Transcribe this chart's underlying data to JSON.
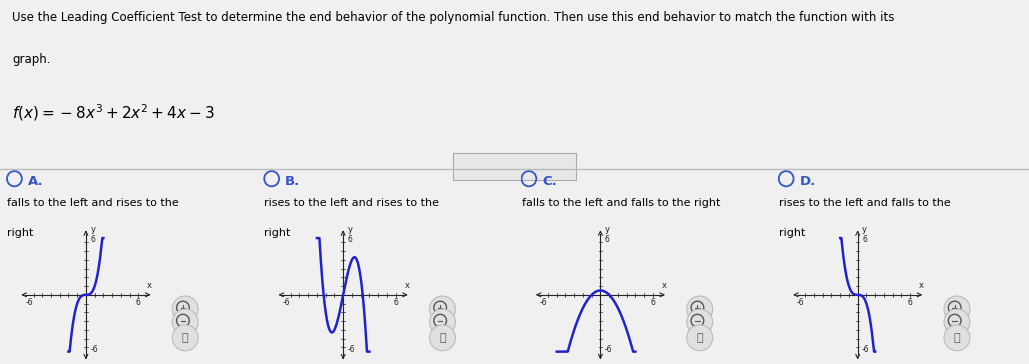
{
  "title_line1": "Use the Leading Coefficient Test to determine the end behavior of the polynomial function. Then use this end behavior to match the function with its",
  "title_line2": "graph.",
  "background_color": "#f0f0f0",
  "text_color": "#000000",
  "option_label_color": "#3355cc",
  "options": [
    "A.",
    "B.",
    "C.",
    "D."
  ],
  "descriptions": [
    [
      "falls to the left and rises to the",
      "right"
    ],
    [
      "rises to the left and rises to the",
      "right"
    ],
    [
      "falls to the left and falls to the right",
      ""
    ],
    [
      "rises to the left and falls to the",
      "right"
    ]
  ],
  "axis_color": "#222222",
  "curve_color": "#2222cc",
  "separator_color": "#bbbbbb",
  "dots_button_color": "#e0e0e0",
  "panel_bg": "#f5f5f5"
}
